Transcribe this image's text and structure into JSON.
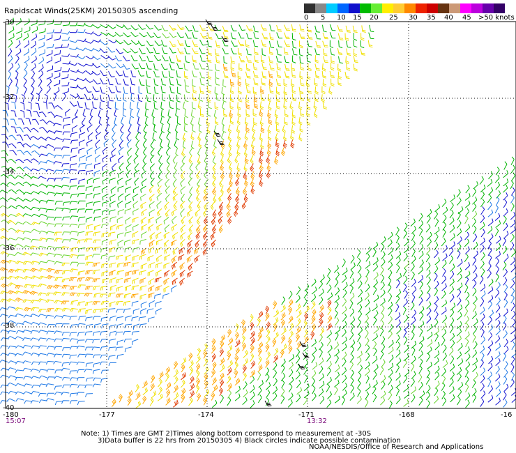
{
  "title": "Rapidscat Winds(25KM) 20150305 ascending",
  "legend": {
    "colors": [
      "#303030",
      "#888888",
      "#00ccff",
      "#0066ff",
      "#1010cc",
      "#00bb00",
      "#66ee33",
      "#ffee00",
      "#ffcc33",
      "#ff8800",
      "#ee2200",
      "#cc0000",
      "#663311",
      "#cc9977",
      "#ff00ff",
      "#bb00dd",
      "#6600aa",
      "#330066"
    ],
    "labels": [
      "0",
      "5",
      "10",
      "15",
      "20",
      "25",
      "30",
      "35",
      "40",
      "45",
      ">50 knots"
    ]
  },
  "map": {
    "lat_labels": [
      "-30",
      "-32",
      "-34",
      "-36",
      "-38",
      "-40"
    ],
    "lon_labels": [
      "-180",
      "-177",
      "-174",
      "-171",
      "-168",
      "-16"
    ],
    "times": [
      "15:07",
      "13:32"
    ],
    "barb_colors": {
      "blue": "#1010d0",
      "lightblue": "#1e78e6",
      "green": "#00b400",
      "lightgreen": "#6ad430",
      "yellow": "#f0e000",
      "orange": "#ffa600",
      "red": "#e03a00",
      "black": "#000000"
    }
  },
  "notes": [
    "Note: 1) Times are GMT 2)Times along bottom correspond to measurement at -30S",
    "3)Data buffer is 22 hrs from 20150305 4) Black circles indicate possible contamination"
  ],
  "credit": "NOAA/NESDIS/Office of Research and Applications"
}
